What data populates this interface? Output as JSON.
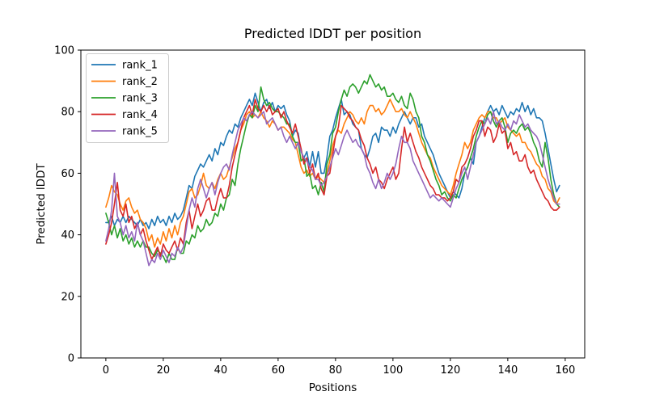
{
  "title": "Predicted lDDT per position",
  "axes": {
    "xlabel": "Positions",
    "ylabel": "Predicted lDDT"
  },
  "chart_data": {
    "type": "line",
    "title": "Predicted lDDT per position",
    "xlabel": "Positions",
    "ylabel": "Predicted lDDT",
    "xlim": [
      -8.7,
      166.8
    ],
    "ylim": [
      0,
      100
    ],
    "xticks": [
      0,
      20,
      40,
      60,
      80,
      100,
      120,
      140,
      160
    ],
    "yticks": [
      0,
      20,
      40,
      60,
      80,
      100
    ],
    "grid": false,
    "legend_position": "upper left",
    "x_start": 0,
    "x_step": 1,
    "series": [
      {
        "name": "rank_1",
        "color": "#1f77b4",
        "values": [
          44,
          44,
          46,
          43,
          45,
          44,
          46,
          44,
          46,
          45,
          44,
          43,
          45,
          43,
          44,
          42,
          45,
          43,
          46,
          44,
          45,
          43,
          46,
          44,
          47,
          45,
          46,
          48,
          52,
          56,
          55,
          59,
          61,
          63,
          62,
          64,
          66,
          64,
          68,
          66,
          70,
          69,
          72,
          74,
          73,
          76,
          75,
          78,
          80,
          82,
          84,
          82,
          86,
          83,
          80,
          83,
          84,
          81,
          83,
          80,
          82,
          81,
          82,
          79,
          77,
          72,
          74,
          73,
          67,
          65,
          67,
          62,
          67,
          62,
          67,
          60,
          60,
          65,
          72,
          74,
          78,
          81,
          84,
          79,
          80,
          79,
          76,
          75,
          74,
          68,
          66,
          65,
          68,
          72,
          73,
          70,
          75,
          74,
          74,
          72,
          75,
          73,
          76,
          78,
          80,
          78,
          76,
          78,
          78,
          75,
          76,
          72,
          70,
          68,
          66,
          63,
          60,
          58,
          56,
          54,
          52,
          54,
          53,
          52,
          55,
          60,
          62,
          65,
          63,
          70,
          72,
          75,
          78,
          80,
          82,
          80,
          81,
          79,
          82,
          80,
          78,
          80,
          79,
          81,
          80,
          83,
          80,
          82,
          79,
          81,
          78,
          78,
          77,
          73,
          68,
          63,
          58,
          54,
          56
        ]
      },
      {
        "name": "rank_2",
        "color": "#ff7f0e",
        "values": [
          49,
          52,
          56,
          54,
          53,
          50,
          48,
          51,
          52,
          49,
          47,
          48,
          45,
          44,
          42,
          38,
          40,
          36,
          39,
          37,
          41,
          38,
          42,
          39,
          43,
          40,
          44,
          46,
          50,
          54,
          55,
          52,
          53,
          56,
          60,
          56,
          55,
          57,
          55,
          58,
          60,
          58,
          59,
          62,
          65,
          68,
          70,
          74,
          76,
          79,
          80,
          78,
          79,
          78,
          80,
          78,
          77,
          75,
          77,
          76,
          74,
          75,
          75,
          74,
          73,
          71,
          70,
          66,
          62,
          60,
          61,
          59,
          60,
          58,
          59,
          58,
          57,
          60,
          64,
          69,
          72,
          74,
          73,
          76,
          78,
          80,
          79,
          77,
          76,
          78,
          76,
          80,
          82,
          82,
          80,
          81,
          79,
          80,
          82,
          84,
          82,
          80,
          80,
          81,
          79,
          78,
          80,
          78,
          76,
          73,
          70,
          68,
          66,
          65,
          62,
          60,
          58,
          56,
          55,
          54,
          53,
          56,
          60,
          63,
          66,
          70,
          68,
          70,
          74,
          76,
          78,
          79,
          78,
          80,
          80,
          78,
          78,
          76,
          77,
          78,
          75,
          74,
          73,
          72,
          73,
          70,
          70,
          68,
          67,
          65,
          63,
          62,
          59,
          58,
          55,
          54,
          51,
          50,
          52
        ]
      },
      {
        "name": "rank_3",
        "color": "#2ca02c",
        "values": [
          47,
          44,
          40,
          43,
          39,
          42,
          38,
          40,
          37,
          39,
          36,
          38,
          36,
          38,
          36,
          36,
          34,
          33,
          35,
          34,
          33,
          31,
          34,
          32,
          32,
          36,
          34,
          34,
          38,
          37,
          40,
          39,
          43,
          41,
          42,
          45,
          43,
          44,
          47,
          46,
          50,
          48,
          52,
          53,
          58,
          56,
          63,
          68,
          72,
          76,
          79,
          78,
          82,
          80,
          88,
          84,
          82,
          83,
          81,
          80,
          80,
          79,
          78,
          76,
          76,
          72,
          70,
          70,
          64,
          65,
          59,
          60,
          55,
          56,
          53,
          57,
          54,
          63,
          66,
          73,
          75,
          80,
          84,
          87,
          85,
          88,
          89,
          88,
          86,
          88,
          90,
          89,
          92,
          90,
          88,
          89,
          87,
          88,
          85,
          85,
          86,
          84,
          83,
          85,
          82,
          81,
          86,
          84,
          80,
          78,
          72,
          70,
          66,
          64,
          61,
          58,
          56,
          53,
          54,
          52,
          51,
          53,
          52,
          55,
          58,
          60,
          62,
          65,
          68,
          72,
          75,
          77,
          76,
          79,
          80,
          77,
          75,
          77,
          78,
          75,
          70,
          73,
          74,
          73,
          75,
          76,
          74,
          75,
          73,
          70,
          68,
          64,
          62,
          70,
          65,
          58,
          53,
          50,
          49
        ]
      },
      {
        "name": "rank_4",
        "color": "#d62728",
        "values": [
          37,
          40,
          44,
          50,
          57,
          48,
          46,
          50,
          44,
          46,
          42,
          44,
          40,
          42,
          38,
          35,
          32,
          34,
          36,
          33,
          37,
          35,
          34,
          36,
          38,
          35,
          39,
          37,
          44,
          48,
          42,
          46,
          50,
          46,
          48,
          51,
          52,
          48,
          48,
          52,
          55,
          52,
          52,
          56,
          62,
          66,
          70,
          74,
          78,
          80,
          82,
          79,
          84,
          81,
          80,
          82,
          80,
          82,
          79,
          80,
          81,
          78,
          80,
          77,
          75,
          73,
          76,
          72,
          68,
          63,
          65,
          60,
          63,
          58,
          60,
          55,
          53,
          59,
          60,
          66,
          72,
          75,
          82,
          81,
          80,
          78,
          77,
          75,
          74,
          71,
          69,
          65,
          63,
          60,
          62,
          58,
          57,
          55,
          58,
          60,
          62,
          58,
          60,
          68,
          75,
          70,
          73,
          70,
          67,
          65,
          62,
          60,
          58,
          56,
          55,
          53,
          53,
          52,
          52,
          51,
          52,
          54,
          58,
          57,
          62,
          63,
          65,
          68,
          72,
          74,
          77,
          77,
          72,
          75,
          74,
          70,
          72,
          76,
          73,
          74,
          68,
          70,
          66,
          67,
          64,
          64,
          66,
          62,
          60,
          61,
          58,
          56,
          54,
          52,
          51,
          49,
          48,
          48,
          49
        ]
      },
      {
        "name": "rank_5",
        "color": "#9467bd",
        "values": [
          38,
          42,
          48,
          60,
          46,
          44,
          40,
          43,
          39,
          41,
          38,
          44,
          40,
          38,
          34,
          30,
          32,
          31,
          34,
          32,
          35,
          33,
          31,
          34,
          33,
          36,
          34,
          36,
          42,
          48,
          52,
          49,
          55,
          58,
          55,
          52,
          55,
          57,
          53,
          57,
          60,
          62,
          63,
          61,
          66,
          70,
          74,
          76,
          78,
          77,
          79,
          80,
          79,
          78,
          79,
          80,
          76,
          77,
          78,
          76,
          74,
          75,
          72,
          70,
          72,
          70,
          68,
          70,
          67,
          65,
          64,
          62,
          61,
          58,
          58,
          56,
          57,
          59,
          62,
          65,
          68,
          66,
          69,
          72,
          74,
          72,
          70,
          71,
          69,
          68,
          66,
          62,
          60,
          57,
          55,
          58,
          55,
          57,
          60,
          58,
          60,
          63,
          68,
          72,
          70,
          70,
          68,
          64,
          62,
          60,
          58,
          56,
          54,
          52,
          53,
          52,
          51,
          52,
          51,
          50,
          49,
          52,
          55,
          57,
          60,
          62,
          58,
          62,
          66,
          70,
          72,
          74,
          76,
          78,
          76,
          80,
          76,
          77,
          75,
          74,
          76,
          74,
          77,
          76,
          79,
          77,
          75,
          76,
          74,
          73,
          72,
          70,
          66,
          62,
          58,
          55,
          52,
          50,
          50
        ]
      }
    ]
  }
}
